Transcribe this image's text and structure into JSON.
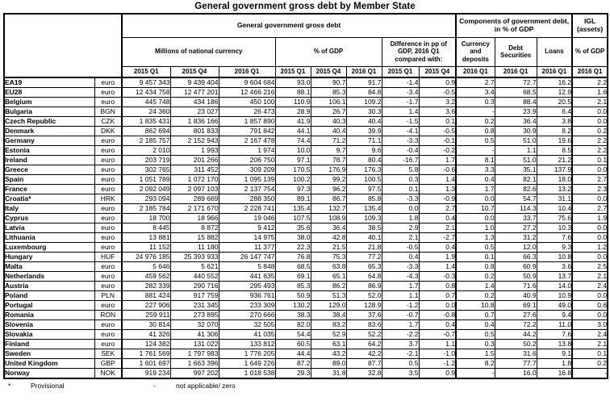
{
  "title": "General government gross debt by Member State",
  "header": {
    "gross_debt": "General government gross debt",
    "millions": "Millions of national currency",
    "pct_gdp": "% of GDP",
    "difference": "Difference in pp of GDP, 2016 Q1 compared with:",
    "components": "Components of government debt, in % of GDP",
    "igl": "IGL (assets)",
    "currency_deposits": "Currency and deposits",
    "debt_securities": "Debt Securities",
    "loans": "Loans",
    "igl_pct": "% of GDP",
    "quarters": [
      "2015 Q1",
      "2015 Q4",
      "2016 Q1",
      "2015 Q1",
      "2015 Q4",
      "2016 Q1",
      "2015 Q1",
      "2015 Q4",
      "2016 Q1",
      "2016 Q1",
      "2016 Q1",
      "2016 Q1"
    ]
  },
  "rows": [
    {
      "country": "EA19",
      "currency": "euro",
      "values": [
        "9 457 343",
        "9 439 404",
        "9 604 684",
        "93.0",
        "90.7",
        "91.7",
        "-1.4",
        "0.9",
        "2.7",
        "72.7",
        "16.2",
        "2.2"
      ]
    },
    {
      "country": "EU28",
      "currency": "euro",
      "values": [
        "12 434 758",
        "12 477 201",
        "12 466 216",
        "88.1",
        "85.3",
        "84.8",
        "-3.4",
        "-0.5",
        "3.4",
        "68.5",
        "12.9",
        "1.6"
      ]
    },
    {
      "country": "Belgium",
      "currency": "euro",
      "values": [
        "445 748",
        "434 186",
        "450 100",
        "110.9",
        "106.1",
        "109.2",
        "-1.7",
        "3.2",
        "0.3",
        "88.4",
        "20.5",
        "2.1"
      ]
    },
    {
      "country": "Bulgaria",
      "currency": "BGN",
      "values": [
        "24 360",
        "23 027",
        "26 473",
        "28.9",
        "26.7",
        "30.3",
        "1.4",
        "3.6",
        "-",
        "23.9",
        "6.4",
        "0.0"
      ]
    },
    {
      "country": "Czech Republic",
      "currency": "CZK",
      "values": [
        "1 835 431",
        "1 836 166",
        "1 857 890",
        "41.9",
        "40.3",
        "40.4",
        "-1.5",
        "0.1",
        "0.2",
        "36.4",
        "3.8",
        "0.0"
      ]
    },
    {
      "country": "Denmark",
      "currency": "DKK",
      "values": [
        "862 694",
        "801 833",
        "791 842",
        "44.1",
        "40.4",
        "39.9",
        "-4.1",
        "-0.5",
        "0.8",
        "30.9",
        "8.2",
        "0.2"
      ]
    },
    {
      "country": "Germany",
      "currency": "euro",
      "values": [
        "2 185 757",
        "2 152 943",
        "2 167 478",
        "74.4",
        "71.2",
        "71.1",
        "-3.3",
        "-0.1",
        "0.5",
        "51.0",
        "19.6",
        "2.2"
      ]
    },
    {
      "country": "Estonia",
      "currency": "euro",
      "values": [
        "2 010",
        "1 993",
        "1 974",
        "10.0",
        "9.7",
        "9.6",
        "-0.4",
        "-0.2",
        "-",
        "1.1",
        "8.5",
        "2.2"
      ]
    },
    {
      "country": "Ireland",
      "currency": "euro",
      "values": [
        "203 719",
        "201 266",
        "206 750",
        "97.1",
        "78.7",
        "80.4",
        "-16.7",
        "1.7",
        "8.1",
        "51.0",
        "21.2",
        "0.1"
      ]
    },
    {
      "country": "Greece",
      "currency": "euro",
      "values": [
        "302 765",
        "311 452",
        "309 209",
        "170.5",
        "176.9",
        "176.3",
        "5.8",
        "-0.6",
        "3.3",
        "35.1",
        "137.9",
        "0.0"
      ]
    },
    {
      "country": "Spain",
      "currency": "euro",
      "values": [
        "1 051 789",
        "1 072 170",
        "1 095 139",
        "100.2",
        "99.2",
        "100.5",
        "0.3",
        "1.4",
        "0.4",
        "82.1",
        "18.0",
        "2.7"
      ]
    },
    {
      "country": "France",
      "currency": "euro",
      "values": [
        "2 092 049",
        "2 097 103",
        "2 137 754",
        "97.3",
        "96.2",
        "97.5",
        "0.1",
        "1.3",
        "1.7",
        "82.6",
        "13.2",
        "2.3"
      ]
    },
    {
      "country": "Croatia*",
      "currency": "HRK",
      "values": [
        "293 094",
        "289 669",
        "288 350",
        "89.1",
        "86.7",
        "85.8",
        "-3.3",
        "-0.9",
        "0.0",
        "54.7",
        "31.1",
        "0.0"
      ]
    },
    {
      "country": "Italy",
      "currency": "euro",
      "values": [
        "2 185 784",
        "2 171 670",
        "2 228 741",
        "135.4",
        "132.7",
        "135.4",
        "0.0",
        "2.7",
        "10.7",
        "114.3",
        "10.4",
        "2.7"
      ]
    },
    {
      "country": "Cyprus",
      "currency": "euro",
      "values": [
        "18 700",
        "18 966",
        "19 046",
        "107.5",
        "108.9",
        "109.3",
        "1.8",
        "0.4",
        "0.0",
        "33.7",
        "75.6",
        "1.9"
      ]
    },
    {
      "country": "Latvia",
      "currency": "euro",
      "values": [
        "8 445",
        "8 872",
        "9 412",
        "35.6",
        "36.4",
        "38.5",
        "2.9",
        "2.1",
        "1.0",
        "27.2",
        "10.3",
        "0.0"
      ]
    },
    {
      "country": "Lithuania",
      "currency": "euro",
      "values": [
        "13 881",
        "15 882",
        "14 975",
        "38.0",
        "42.8",
        "40.1",
        "2.1",
        "-2.7",
        "1.3",
        "31.2",
        "7.6",
        "0.0"
      ]
    },
    {
      "country": "Luxembourg",
      "currency": "euro",
      "values": [
        "11 152",
        "11 180",
        "11 377",
        "22.3",
        "21.5",
        "21.8",
        "-0.5",
        "0.4",
        "0.5",
        "12.0",
        "9.3",
        "1.2"
      ]
    },
    {
      "country": "Hungary",
      "currency": "HUF",
      "values": [
        "24 976 185",
        "25 393 933",
        "26 147 747",
        "76.8",
        "75.3",
        "77.2",
        "0.4",
        "1.9",
        "0.1",
        "66.3",
        "10.8",
        "0.0"
      ]
    },
    {
      "country": "Malta",
      "currency": "euro",
      "values": [
        "5 646",
        "5 621",
        "5 848",
        "68.5",
        "63.8",
        "65.3",
        "-3.3",
        "1.4",
        "0.8",
        "60.9",
        "3.6",
        "2.5"
      ]
    },
    {
      "country": "Netherlands",
      "currency": "euro",
      "values": [
        "459 562",
        "440 552",
        "441 635",
        "69.1",
        "65.1",
        "64.8",
        "-4.3",
        "-0.3",
        "0.2",
        "50.9",
        "13.7",
        "2.1"
      ]
    },
    {
      "country": "Austria",
      "currency": "euro",
      "values": [
        "282 339",
        "290 716",
        "295 493",
        "85.3",
        "86.2",
        "86.9",
        "1.7",
        "0.8",
        "1.4",
        "71.6",
        "14.0",
        "2.4"
      ]
    },
    {
      "country": "Poland",
      "currency": "PLN",
      "values": [
        "881 424",
        "917 759",
        "936 761",
        "50.9",
        "51.3",
        "52.0",
        "1.1",
        "0.7",
        "0.2",
        "40.9",
        "10.9",
        "0.0"
      ]
    },
    {
      "country": "Portugal",
      "currency": "euro",
      "values": [
        "227 906",
        "231 345",
        "233 309",
        "130.2",
        "129.0",
        "128.9",
        "-1.2",
        "0.0",
        "10.8",
        "69.1",
        "49.0",
        "0.6"
      ]
    },
    {
      "country": "Romania",
      "currency": "RON",
      "values": [
        "259 911",
        "273 895",
        "270 666",
        "38.3",
        "38.4",
        "37.6",
        "-0.7",
        "-0.8",
        "0.7",
        "27.6",
        "9.4",
        "0.0"
      ]
    },
    {
      "country": "Slovenia",
      "currency": "euro",
      "values": [
        "30 814",
        "32 070",
        "32 505",
        "82.0",
        "83.2",
        "83.6",
        "1.7",
        "0.4",
        "0.4",
        "72.2",
        "11.0",
        "3.0"
      ]
    },
    {
      "country": "Slovakia",
      "currency": "euro",
      "values": [
        "41 326",
        "41 306",
        "41 035",
        "54.4",
        "52.9",
        "52.2",
        "-2.2",
        "-0.7",
        "0.5",
        "44.2",
        "7.6",
        "2.4"
      ]
    },
    {
      "country": "Finland",
      "currency": "euro",
      "values": [
        "124 382",
        "131 022",
        "133 812",
        "60.5",
        "63.1",
        "64.2",
        "3.7",
        "1.1",
        "0.3",
        "50.2",
        "13.8",
        "2.1"
      ]
    },
    {
      "country": "Sweden",
      "currency": "SEK",
      "values": [
        "1 761 569",
        "1 797 983",
        "1 776 205",
        "44.4",
        "43.2",
        "42.2",
        "-2.1",
        "-1.0",
        "1.5",
        "31.6",
        "9.1",
        "0.1"
      ]
    },
    {
      "country": "United Kingdom",
      "currency": "GBP",
      "values": [
        "1 601 697",
        "1 663 396",
        "1 649 226",
        "87.2",
        "89.0",
        "87.7",
        "0.5",
        "-1.2",
        "8.2",
        "77.7",
        "1.8",
        "0.2"
      ]
    },
    {
      "country": "Norway",
      "currency": "NOK",
      "values": [
        "919 234",
        "997 202",
        "1 018 538",
        "29.3",
        "31.8",
        "32.8",
        "3.5",
        "0.9",
        "-",
        "16.0",
        "16.8",
        "-"
      ]
    }
  ],
  "footnotes": [
    {
      "symbol": "*",
      "text": "Provisional"
    },
    {
      "symbol": "-",
      "text": "not applicable/ zero"
    }
  ],
  "column_names": [
    "millions-2015q1",
    "millions-2015q4",
    "millions-2016q1",
    "pct-gdp-2015q1",
    "pct-gdp-2015q4",
    "pct-gdp-2016q1",
    "diff-vs-2015q1",
    "diff-vs-2015q4",
    "currency-deposits-2016q1",
    "debt-securities-2016q1",
    "loans-2016q1",
    "igl-2016q1"
  ]
}
